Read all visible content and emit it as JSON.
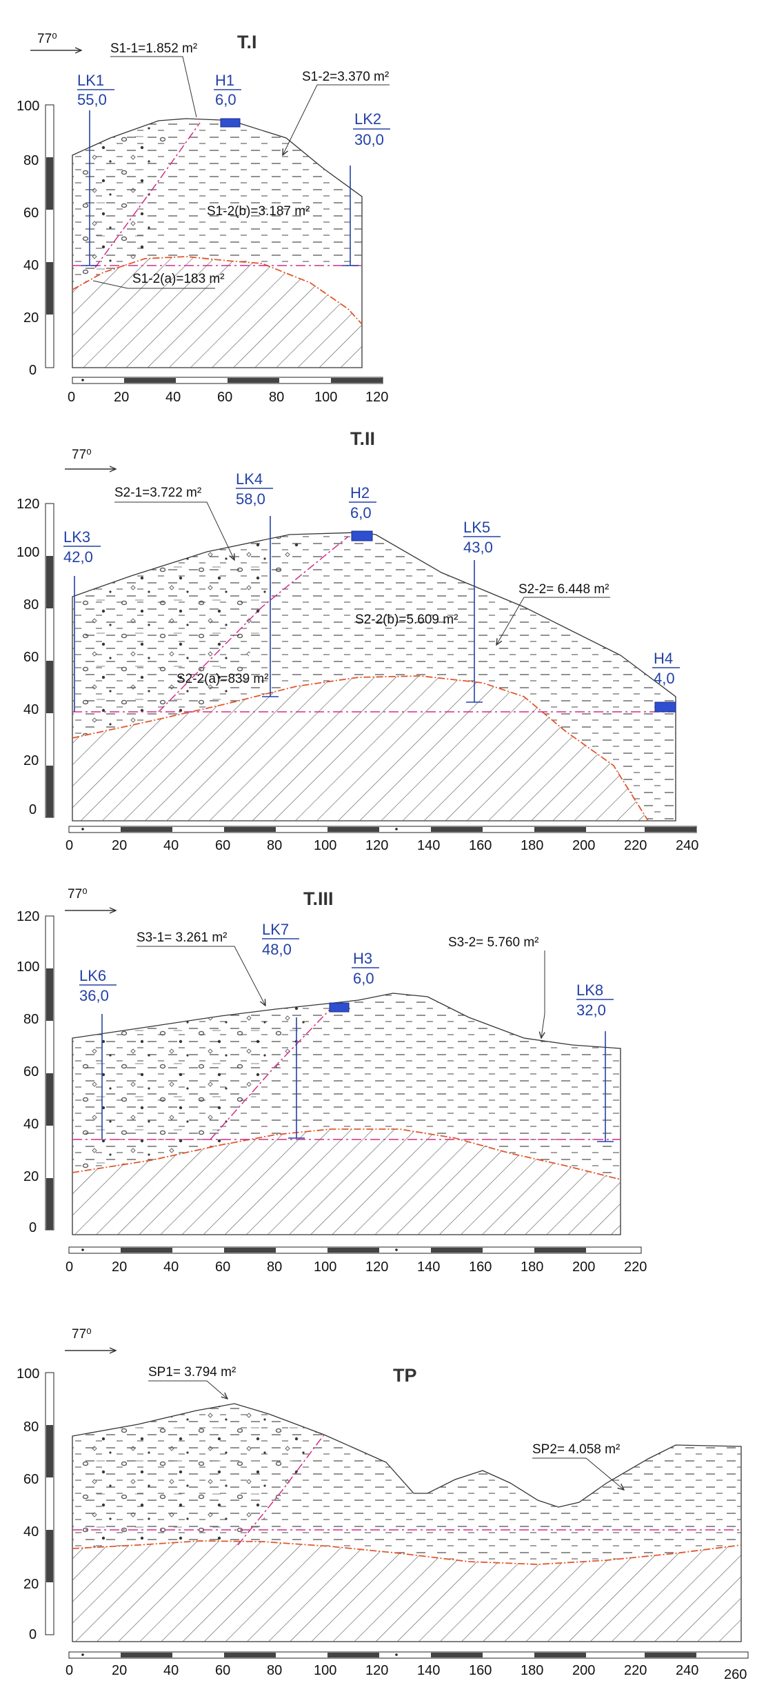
{
  "azimuth_label": "77⁰",
  "sections": [
    {
      "id": "s1",
      "title": "T.I",
      "y_ticks": [
        "0",
        "20",
        "40",
        "60",
        "80",
        "100"
      ],
      "x_ticks": [
        "0",
        "20",
        "40",
        "60",
        "80",
        "100",
        "120"
      ],
      "areas": {
        "a1": "S1-1=1.852 m²",
        "a2": "S1-2=3.370 m²",
        "a3": "S1-2(b)=3.187 m²",
        "a4": "S1-2(a)=183 m²"
      },
      "boreholes": [
        {
          "top": "LK1",
          "bottom": "55,0"
        },
        {
          "top": "H1",
          "bottom": "6,0"
        },
        {
          "top": "LK2",
          "bottom": "30,0"
        }
      ]
    },
    {
      "id": "s2",
      "title": "T.II",
      "y_ticks": [
        "0",
        "20",
        "40",
        "60",
        "80",
        "100",
        "120"
      ],
      "x_ticks": [
        "0",
        "20",
        "40",
        "60",
        "80",
        "100",
        "120",
        "140",
        "160",
        "180",
        "200",
        "220",
        "240"
      ],
      "areas": {
        "a1": "S2-1=3.722 m²",
        "a2": "S2-2= 6.448 m²",
        "a3": "S2-2(b)=5.609 m²",
        "a4": "S2-2(a)=839 m²"
      },
      "boreholes": [
        {
          "top": "LK3",
          "bottom": "42,0"
        },
        {
          "top": "LK4",
          "bottom": "58,0"
        },
        {
          "top": "H2",
          "bottom": "6,0"
        },
        {
          "top": "LK5",
          "bottom": "43,0"
        },
        {
          "top": "H4",
          "bottom": "4,0"
        }
      ]
    },
    {
      "id": "s3",
      "title": "T.III",
      "y_ticks": [
        "0",
        "20",
        "40",
        "60",
        "80",
        "100",
        "120"
      ],
      "x_ticks": [
        "0",
        "20",
        "40",
        "60",
        "80",
        "100",
        "120",
        "140",
        "160",
        "180",
        "200",
        "220"
      ],
      "areas": {
        "a1": "S3-1= 3.261 m²",
        "a2": "S3-2= 5.760 m²"
      },
      "boreholes": [
        {
          "top": "LK6",
          "bottom": "36,0"
        },
        {
          "top": "LK7",
          "bottom": "48,0"
        },
        {
          "top": "H3",
          "bottom": "6,0"
        },
        {
          "top": "LK8",
          "bottom": "32,0"
        }
      ]
    },
    {
      "id": "s4",
      "title": "TP",
      "y_ticks": [
        "0",
        "20",
        "40",
        "60",
        "80",
        "100"
      ],
      "x_ticks": [
        "0",
        "20",
        "40",
        "60",
        "80",
        "100",
        "120",
        "140",
        "160",
        "180",
        "200",
        "220",
        "240",
        "260"
      ],
      "areas": {
        "a1": "SP1= 3.794 m²",
        "a2": "SP2= 4.058 m²"
      },
      "boreholes": []
    }
  ]
}
